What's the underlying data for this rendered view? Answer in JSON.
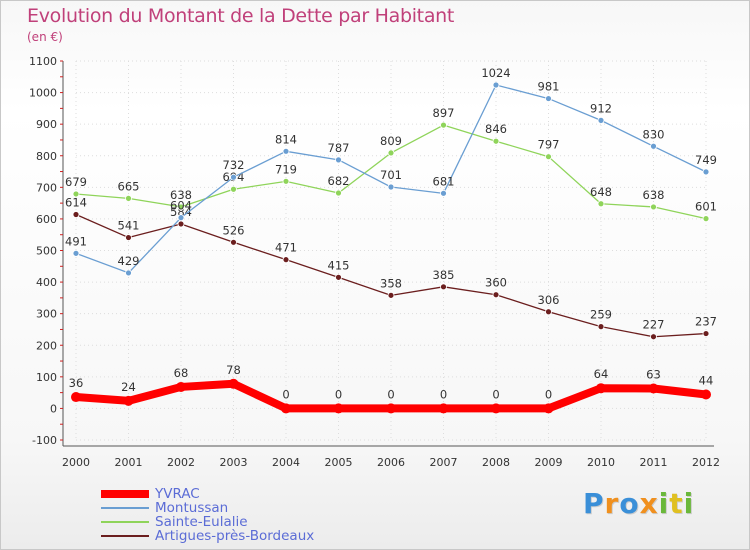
{
  "colors": {
    "title": "#c0407a",
    "legend_text": "#5b6cd6",
    "axis": "#333333",
    "grid": "#dddddd"
  },
  "chart_data": {
    "type": "line",
    "title": "Evolution du Montant de la Dette par Habitant",
    "subtitle": "(en €)",
    "x": [
      "2000",
      "2001",
      "2002",
      "2003",
      "2004",
      "2005",
      "2006",
      "2007",
      "2008",
      "2009",
      "2010",
      "2011",
      "2012"
    ],
    "ylim": [
      -100,
      1100
    ],
    "yticks": [
      -100,
      0,
      100,
      200,
      300,
      400,
      500,
      600,
      700,
      800,
      900,
      1000,
      1100
    ],
    "grid": true,
    "legend_position": "bottom-left",
    "series": [
      {
        "name": "YVRAC",
        "color": "#ff0000",
        "values": [
          36,
          24,
          68,
          78,
          0,
          0,
          0,
          0,
          0,
          0,
          64,
          63,
          44
        ]
      },
      {
        "name": "Montussan",
        "color": "#6a9ed2",
        "values": [
          491,
          429,
          604,
          732,
          814,
          787,
          701,
          681,
          1024,
          981,
          912,
          830,
          749
        ]
      },
      {
        "name": "Sainte-Eulalie",
        "color": "#8fd45a",
        "values": [
          679,
          665,
          638,
          694,
          719,
          682,
          809,
          897,
          846,
          797,
          648,
          638,
          601
        ]
      },
      {
        "name": "Artigues-près-Bordeaux",
        "color": "#6b1e1e",
        "values": [
          614,
          541,
          584,
          526,
          471,
          415,
          358,
          385,
          360,
          306,
          259,
          227,
          237
        ]
      }
    ]
  },
  "brand": {
    "letters": [
      "P",
      "r",
      "o",
      "x",
      "i",
      "t",
      "i"
    ],
    "colors": [
      "#3a8fd8",
      "#f0901e",
      "#3a8fd8",
      "#f0901e",
      "#6ab83a",
      "#e0c020",
      "#6ab83a"
    ]
  }
}
